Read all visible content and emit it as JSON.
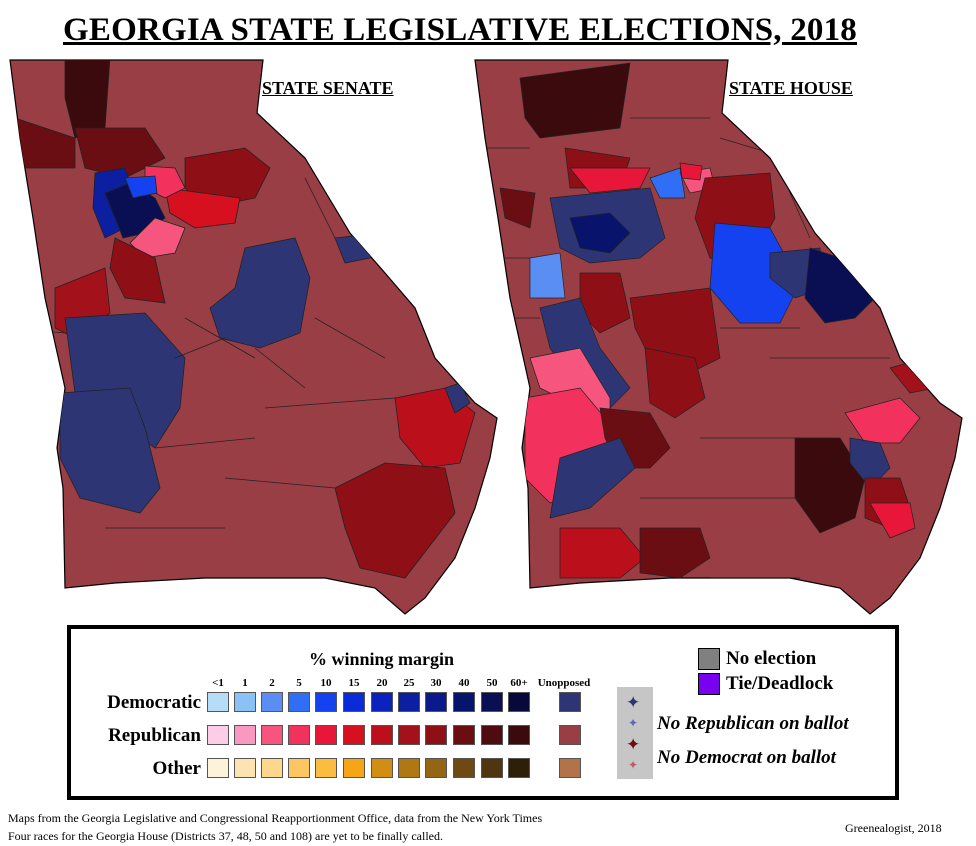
{
  "title": "GEORGIA STATE LEGISLATIVE ELECTIONS, 2018",
  "maps": {
    "senate_label": "STATE SENATE",
    "house_label": "STATE HOUSE"
  },
  "colors": {
    "rep_unopposed": "#9a3e45",
    "rep_60": "#3a0a0c",
    "rep_50": "#4f0c10",
    "rep_40": "#6b0e14",
    "rep_30": "#8e0f16",
    "rep_25": "#a3111a",
    "rep_20": "#bb0f1c",
    "rep_15": "#d6101f",
    "rep_10": "#e8173a",
    "rep_5": "#f2325d",
    "rep_2": "#f6567e",
    "rep_1": "#f998c1",
    "rep_lt1": "#fdcde8",
    "dem_unopposed": "#2e3575",
    "dem_60": "#06093a",
    "dem_50": "#0a0f54",
    "dem_40": "#08136c",
    "dem_30": "#0b1a8a",
    "dem_25": "#0b1fa0",
    "dem_20": "#0a23bc",
    "dem_15": "#0a2bd8",
    "dem_10": "#1442f0",
    "dem_5": "#2f6ef5",
    "dem_2": "#5b8ef2",
    "dem_1": "#8ac2f5",
    "dem_lt1": "#b6dcf7",
    "oth_unopposed": "#b2734a",
    "oth_60": "#2e2008",
    "oth_50": "#4f3610",
    "oth_40": "#6e4a12",
    "oth_30": "#946513",
    "oth_25": "#b07812",
    "oth_20": "#d28e12",
    "oth_15": "#f5a516",
    "oth_10": "#fbbc3f",
    "oth_5": "#fcc663",
    "oth_2": "#fdd78c",
    "oth_1": "#fde3b2",
    "oth_lt1": "#fdf2da",
    "no_election": "#808080",
    "tie": "#7a00f0"
  },
  "legend": {
    "title": "% winning margin",
    "columns": [
      "<1",
      "1",
      "2",
      "5",
      "10",
      "15",
      "20",
      "25",
      "30",
      "40",
      "50",
      "60+",
      "Unopposed"
    ],
    "rows": [
      {
        "label": "Democratic",
        "colors": [
          "#b6dcf7",
          "#8ac2f5",
          "#5b8ef2",
          "#2f6ef5",
          "#1442f0",
          "#0a2bd8",
          "#0a23bc",
          "#0b1fa0",
          "#0b1a8a",
          "#08136c",
          "#0a0f54",
          "#06093a",
          "#2e3575"
        ]
      },
      {
        "label": "Republican",
        "colors": [
          "#fdcde8",
          "#f998c1",
          "#f6567e",
          "#f2325d",
          "#e8173a",
          "#d6101f",
          "#bb0f1c",
          "#a3111a",
          "#8e0f16",
          "#6b0e14",
          "#4f0c10",
          "#3a0a0c",
          "#9a3e45"
        ]
      },
      {
        "label": "Other",
        "colors": [
          "#fdf2da",
          "#fde3b2",
          "#fdd78c",
          "#fcc663",
          "#fbbc3f",
          "#f5a516",
          "#d28e12",
          "#b07812",
          "#946513",
          "#6e4a12",
          "#4f3610",
          "#2e2008",
          "#b2734a"
        ]
      }
    ],
    "no_election": "No election",
    "tie": "Tie/Deadlock",
    "no_republican": "No Republican on ballot",
    "no_democrat": "No Democrat on ballot"
  },
  "footer": {
    "source": "Maps from the Georgia Legislative and Congressional Reapportionment Office, data from the New York Times",
    "note": "Four races for the Georgia House (Districts 37, 48, 50 and 108) are yet to be finally called.",
    "credit": "Greenealogist, 2018"
  }
}
